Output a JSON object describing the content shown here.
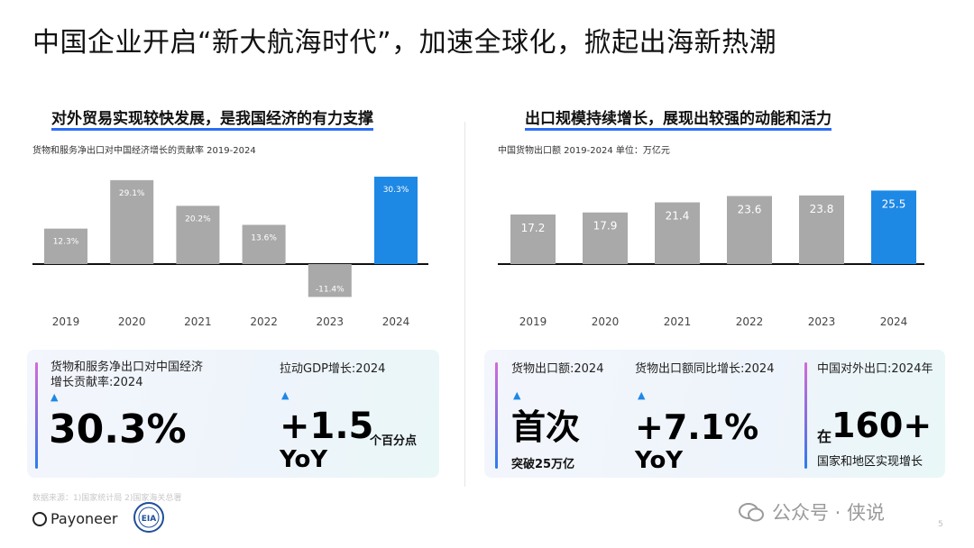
{
  "page": {
    "title": "中国企业开启“新大航海时代”，加速全球化，掀起出海新热潮",
    "page_number": "5"
  },
  "left": {
    "heading": "对外贸易实现较快发展，是我国经济的有力支撑",
    "subtitle": "货物和服务净出口对中国经济增长的贡献率 2019-2024",
    "card": {
      "item1_label_line1": "货物和服务净出口对中国经济",
      "item1_label_line2": "增长贡献率:2024",
      "item1_value": "30.3%",
      "item2_label": "拉动GDP增长:2024",
      "item2_value": "+1.5",
      "item2_unit": "个百分点",
      "item2_suffix": "YoY",
      "arrow": "▲"
    }
  },
  "right": {
    "heading": "出口规模持续增长，展现出较强的动能和活力",
    "subtitle": "中国货物出口额 2019-2024  单位：万亿元",
    "card": {
      "item1_label": "货物出口额:2024",
      "item1_value": "首次",
      "item1_sub": "突破25万亿",
      "item2_label": "货物出口额同比增长:2024",
      "item2_value": "+7.1%",
      "item2_suffix": "YoY",
      "item3_label": "中国对外出口:2024年",
      "item3_prefix": "在",
      "item3_value": "160+",
      "item3_sub": "国家和地区实现增长",
      "arrow": "▲"
    }
  },
  "footer": {
    "source": "数据来源：1)国家统计局  2)国家海关总署",
    "logo_text": "Payoneer",
    "seal_text": "EIA",
    "watermark": "公众号 · 侠说"
  },
  "colors": {
    "bar_gray": "#a9a9a9",
    "bar_highlight": "#1e88e5",
    "underline": "#2a6df4"
  },
  "chart_data": [
    {
      "type": "bar",
      "title": "货物和服务净出口对中国经济增长的贡献率 2019-2024",
      "categories": [
        "2019",
        "2020",
        "2021",
        "2022",
        "2023",
        "2024"
      ],
      "values": [
        12.3,
        29.1,
        20.2,
        13.6,
        -11.4,
        30.3
      ],
      "labels": [
        "12.3%",
        "29.1%",
        "20.2%",
        "13.6%",
        "-11.4%",
        "30.3%"
      ],
      "unit": "%",
      "highlight": "2024",
      "ylim": [
        -12,
        32
      ],
      "grid": false,
      "legend": "none"
    },
    {
      "type": "bar",
      "title": "中国货物出口额 2019-2024  单位：万亿元",
      "categories": [
        "2019",
        "2020",
        "2021",
        "2022",
        "2023",
        "2024"
      ],
      "values": [
        17.2,
        17.9,
        21.4,
        23.6,
        23.8,
        25.5
      ],
      "labels": [
        "17.2",
        "17.9",
        "21.4",
        "23.6",
        "23.8",
        "25.5"
      ],
      "unit": "万亿元",
      "highlight": "2024",
      "ylim": [
        0,
        27
      ],
      "grid": false,
      "legend": "none"
    }
  ]
}
